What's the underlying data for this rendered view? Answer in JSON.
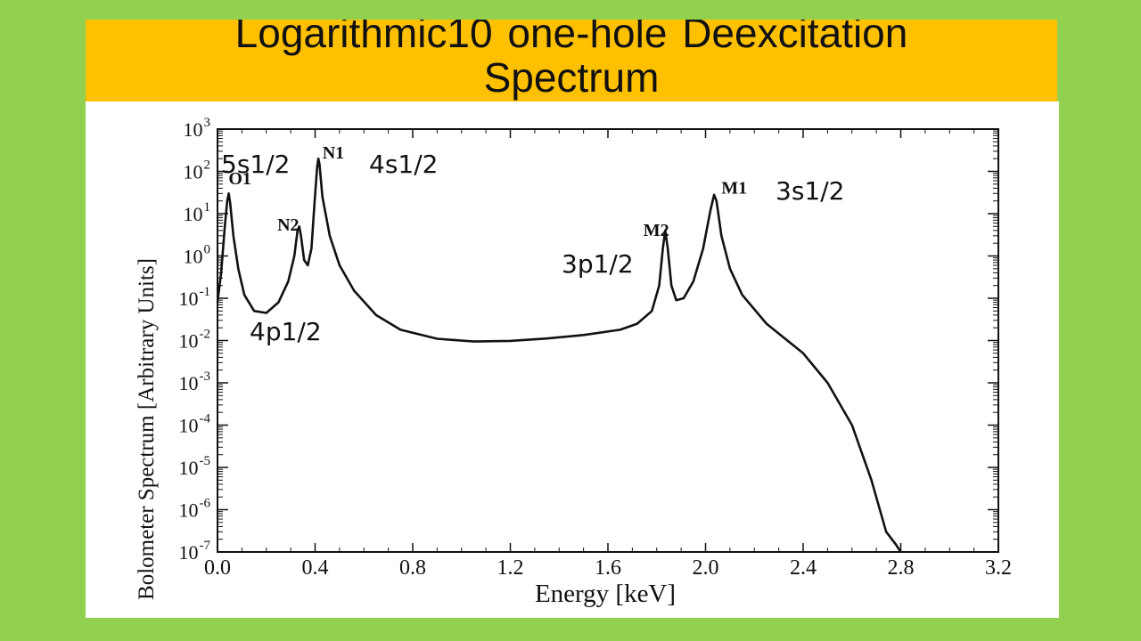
{
  "slide": {
    "title": "Logarithmic10 one-hole Deexcitation Spectrum",
    "background_color": "#92d050",
    "title_bar_color": "#ffc000",
    "panel_color": "#ffffff"
  },
  "chart_data": {
    "type": "line",
    "title": "",
    "xlabel": "Energy [keV]",
    "ylabel": "Bolometer Spectrum [Arbitrary Units]",
    "x_scale": "linear",
    "y_scale": "log",
    "xlim": [
      0.0,
      3.2
    ],
    "ylim": [
      1e-07,
      1000
    ],
    "x_ticks": [
      "0.0",
      "0.4",
      "0.8",
      "1.2",
      "1.6",
      "2.0",
      "2.4",
      "2.8",
      "3.2"
    ],
    "y_ticks": [
      {
        "base": "10",
        "exp": "3"
      },
      {
        "base": "10",
        "exp": "2"
      },
      {
        "base": "10",
        "exp": "1"
      },
      {
        "base": "10",
        "exp": "0"
      },
      {
        "base": "10",
        "exp": "-1"
      },
      {
        "base": "10",
        "exp": "-2"
      },
      {
        "base": "10",
        "exp": "-3"
      },
      {
        "base": "10",
        "exp": "-4"
      },
      {
        "base": "10",
        "exp": "-5"
      },
      {
        "base": "10",
        "exp": "-6"
      },
      {
        "base": "10",
        "exp": "-7"
      }
    ],
    "grid": false,
    "series": [
      {
        "color": "#111111",
        "points": [
          [
            0.0,
            0.08
          ],
          [
            0.015,
            0.4
          ],
          [
            0.03,
            5.0
          ],
          [
            0.04,
            20.0
          ],
          [
            0.046,
            30.0
          ],
          [
            0.052,
            18.0
          ],
          [
            0.065,
            3.0
          ],
          [
            0.085,
            0.5
          ],
          [
            0.11,
            0.12
          ],
          [
            0.15,
            0.05
          ],
          [
            0.2,
            0.045
          ],
          [
            0.25,
            0.08
          ],
          [
            0.29,
            0.25
          ],
          [
            0.315,
            1.0
          ],
          [
            0.328,
            4.0
          ],
          [
            0.335,
            5.0
          ],
          [
            0.342,
            3.0
          ],
          [
            0.355,
            0.8
          ],
          [
            0.37,
            0.6
          ],
          [
            0.385,
            1.5
          ],
          [
            0.398,
            20.0
          ],
          [
            0.408,
            120.0
          ],
          [
            0.413,
            200.0
          ],
          [
            0.418,
            150.0
          ],
          [
            0.43,
            25.0
          ],
          [
            0.46,
            3.0
          ],
          [
            0.5,
            0.6
          ],
          [
            0.56,
            0.15
          ],
          [
            0.65,
            0.04
          ],
          [
            0.75,
            0.018
          ],
          [
            0.9,
            0.011
          ],
          [
            1.05,
            0.0095
          ],
          [
            1.2,
            0.0098
          ],
          [
            1.35,
            0.0112
          ],
          [
            1.5,
            0.0135
          ],
          [
            1.65,
            0.018
          ],
          [
            1.72,
            0.025
          ],
          [
            1.78,
            0.05
          ],
          [
            1.81,
            0.2
          ],
          [
            1.825,
            1.5
          ],
          [
            1.835,
            4.0
          ],
          [
            1.845,
            1.5
          ],
          [
            1.86,
            0.2
          ],
          [
            1.88,
            0.09
          ],
          [
            1.91,
            0.1
          ],
          [
            1.95,
            0.25
          ],
          [
            1.99,
            1.5
          ],
          [
            2.02,
            12.0
          ],
          [
            2.035,
            28.0
          ],
          [
            2.045,
            20.0
          ],
          [
            2.065,
            3.0
          ],
          [
            2.1,
            0.5
          ],
          [
            2.15,
            0.12
          ],
          [
            2.25,
            0.025
          ],
          [
            2.4,
            0.005
          ],
          [
            2.5,
            0.001
          ],
          [
            2.6,
            0.0001
          ],
          [
            2.68,
            5e-06
          ],
          [
            2.74,
            3e-07
          ],
          [
            2.78,
            1.5e-07
          ],
          [
            2.8,
            1e-07
          ]
        ]
      }
    ],
    "peak_labels": [
      {
        "text": "O1",
        "x": 0.045,
        "y": 50
      },
      {
        "text": "N2",
        "x": 0.245,
        "y": 4
      },
      {
        "text": "N1",
        "x": 0.43,
        "y": 200
      },
      {
        "text": "M2",
        "x": 1.745,
        "y": 3
      },
      {
        "text": "M1",
        "x": 2.065,
        "y": 30
      }
    ]
  },
  "callouts": [
    {
      "text": "5s1/2"
    },
    {
      "text": "4s1/2"
    },
    {
      "text": "3s1/2"
    },
    {
      "text": "3p1/2"
    },
    {
      "text": "4p1/2"
    }
  ]
}
